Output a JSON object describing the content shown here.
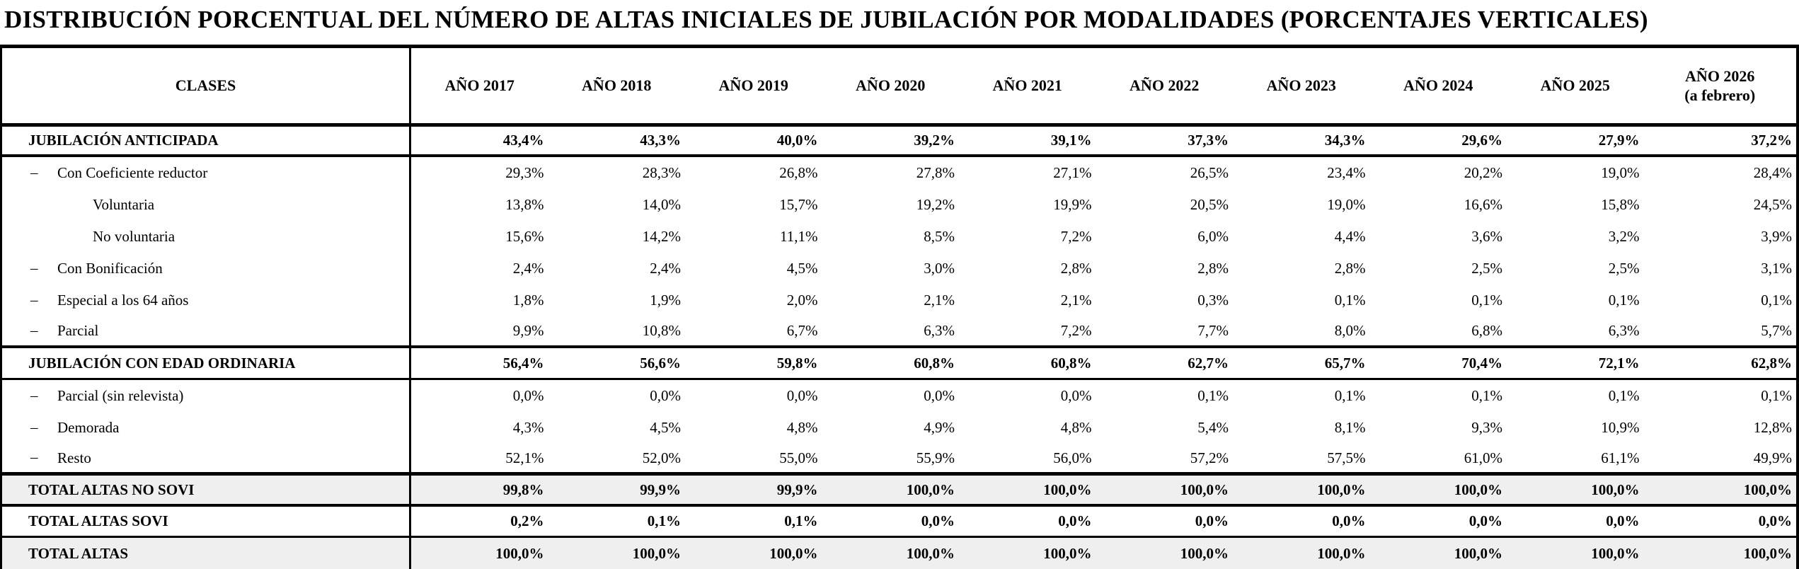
{
  "title": "DISTRIBUCIÓN PORCENTUAL DEL NÚMERO DE ALTAS INICIALES DE JUBILACIÓN POR MODALIDADES (PORCENTAJES VERTICALES)",
  "table": {
    "header": {
      "clases_label": "CLASES",
      "year_columns": [
        "AÑO 2017",
        "AÑO 2018",
        "AÑO 2019",
        "AÑO 2020",
        "AÑO 2021",
        "AÑO 2022",
        "AÑO 2023",
        "AÑO 2024",
        "AÑO 2025"
      ],
      "last_column": {
        "line1": "AÑO 2026",
        "line2": "(a febrero)"
      }
    },
    "rows": [
      {
        "label": "JUBILACIÓN ANTICIPADA",
        "indent": "section",
        "bold": true,
        "shaded": false,
        "border_bottom": "thick",
        "values": [
          "43,4%",
          "43,3%",
          "40,0%",
          "39,2%",
          "39,1%",
          "37,3%",
          "34,3%",
          "29,6%",
          "27,9%",
          "37,2%"
        ]
      },
      {
        "label": "Con Coeficiente reductor",
        "indent": "dash",
        "bold": false,
        "shaded": false,
        "border_bottom": "none",
        "values": [
          "29,3%",
          "28,3%",
          "26,8%",
          "27,8%",
          "27,1%",
          "26,5%",
          "23,4%",
          "20,2%",
          "19,0%",
          "28,4%"
        ]
      },
      {
        "label": "Voluntaria",
        "indent": "sub2",
        "bold": false,
        "shaded": false,
        "border_bottom": "none",
        "values": [
          "13,8%",
          "14,0%",
          "15,7%",
          "19,2%",
          "19,9%",
          "20,5%",
          "19,0%",
          "16,6%",
          "15,8%",
          "24,5%"
        ]
      },
      {
        "label": "No voluntaria",
        "indent": "sub2",
        "bold": false,
        "shaded": false,
        "border_bottom": "none",
        "values": [
          "15,6%",
          "14,2%",
          "11,1%",
          "8,5%",
          "7,2%",
          "6,0%",
          "4,4%",
          "3,6%",
          "3,2%",
          "3,9%"
        ]
      },
      {
        "label": "Con Bonificación",
        "indent": "dash",
        "bold": false,
        "shaded": false,
        "border_bottom": "none",
        "values": [
          "2,4%",
          "2,4%",
          "4,5%",
          "3,0%",
          "2,8%",
          "2,8%",
          "2,8%",
          "2,5%",
          "2,5%",
          "3,1%"
        ]
      },
      {
        "label": "Especial a los 64 años",
        "indent": "dash",
        "bold": false,
        "shaded": false,
        "border_bottom": "none",
        "values": [
          "1,8%",
          "1,9%",
          "2,0%",
          "2,1%",
          "2,1%",
          "0,3%",
          "0,1%",
          "0,1%",
          "0,1%",
          "0,1%"
        ]
      },
      {
        "label": "Parcial",
        "indent": "dash",
        "bold": false,
        "shaded": false,
        "border_bottom": "thick",
        "values": [
          "9,9%",
          "10,8%",
          "6,7%",
          "6,3%",
          "7,2%",
          "7,7%",
          "8,0%",
          "6,8%",
          "6,3%",
          "5,7%"
        ]
      },
      {
        "label": "JUBILACIÓN CON EDAD ORDINARIA",
        "indent": "section",
        "bold": true,
        "shaded": false,
        "border_bottom": "medium",
        "values": [
          "56,4%",
          "56,6%",
          "59,8%",
          "60,8%",
          "60,8%",
          "62,7%",
          "65,7%",
          "70,4%",
          "72,1%",
          "62,8%"
        ]
      },
      {
        "label": "Parcial (sin relevista)",
        "indent": "dash",
        "bold": false,
        "shaded": false,
        "border_bottom": "none",
        "values": [
          "0,0%",
          "0,0%",
          "0,0%",
          "0,0%",
          "0,0%",
          "0,1%",
          "0,1%",
          "0,1%",
          "0,1%",
          "0,1%"
        ]
      },
      {
        "label": "Demorada",
        "indent": "dash",
        "bold": false,
        "shaded": false,
        "border_bottom": "none",
        "values": [
          "4,3%",
          "4,5%",
          "4,8%",
          "4,9%",
          "4,8%",
          "5,4%",
          "8,1%",
          "9,3%",
          "10,9%",
          "12,8%"
        ]
      },
      {
        "label": "Resto",
        "indent": "dash",
        "bold": false,
        "shaded": false,
        "border_bottom": "xthick",
        "values": [
          "52,1%",
          "52,0%",
          "55,0%",
          "55,9%",
          "56,0%",
          "57,2%",
          "57,5%",
          "61,0%",
          "61,1%",
          "49,9%"
        ]
      },
      {
        "label": "TOTAL ALTAS NO SOVI",
        "indent": "total",
        "bold": true,
        "shaded": true,
        "border_bottom": "thick",
        "values": [
          "99,8%",
          "99,9%",
          "99,9%",
          "100,0%",
          "100,0%",
          "100,0%",
          "100,0%",
          "100,0%",
          "100,0%",
          "100,0%"
        ]
      },
      {
        "label": "TOTAL ALTAS SOVI",
        "indent": "total",
        "bold": true,
        "shaded": false,
        "border_bottom": "medium",
        "values": [
          "0,2%",
          "0,1%",
          "0,1%",
          "0,0%",
          "0,0%",
          "0,0%",
          "0,0%",
          "0,0%",
          "0,0%",
          "0,0%"
        ]
      },
      {
        "label": "TOTAL ALTAS",
        "indent": "total",
        "bold": true,
        "shaded": true,
        "border_bottom": "none",
        "values": [
          "100,0%",
          "100,0%",
          "100,0%",
          "100,0%",
          "100,0%",
          "100,0%",
          "100,0%",
          "100,0%",
          "100,0%",
          "100,0%"
        ]
      }
    ]
  }
}
